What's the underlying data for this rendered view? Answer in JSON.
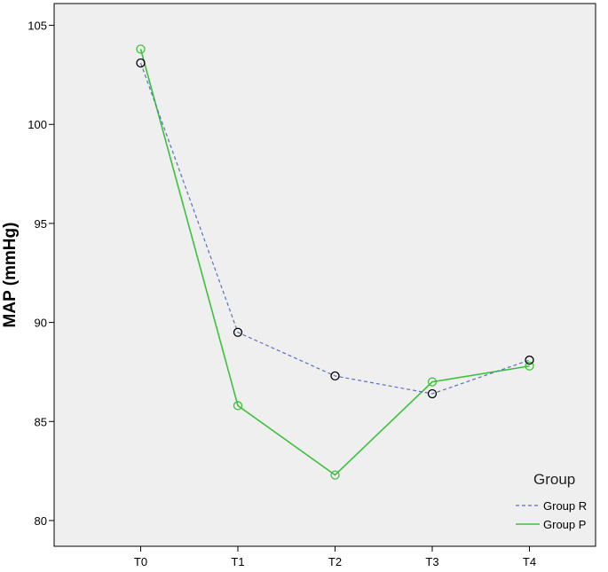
{
  "chart_data": {
    "type": "line",
    "title": "",
    "xlabel": "",
    "ylabel": "MAP (mmHg)",
    "categories": [
      "T0",
      "T1",
      "T2",
      "T3",
      "T4"
    ],
    "ylim": [
      78.7,
      106.1
    ],
    "yticks": [
      "80",
      "85",
      "90",
      "95",
      "100",
      "105"
    ],
    "grid": false,
    "legend": {
      "title": "Group",
      "position": "bottom-right"
    },
    "series": [
      {
        "name": "Group R",
        "values": [
          103.1,
          89.5,
          87.3,
          86.4,
          88.1
        ],
        "color": "#5b6fc4",
        "marker_color": "#000000",
        "line_style": "dashed"
      },
      {
        "name": "Group P",
        "values": [
          103.8,
          85.8,
          82.3,
          87.0,
          87.8
        ],
        "color": "#3cc13c",
        "marker_color": "#3cc13c",
        "line_style": "solid"
      }
    ],
    "plot_background": "#efefef"
  }
}
